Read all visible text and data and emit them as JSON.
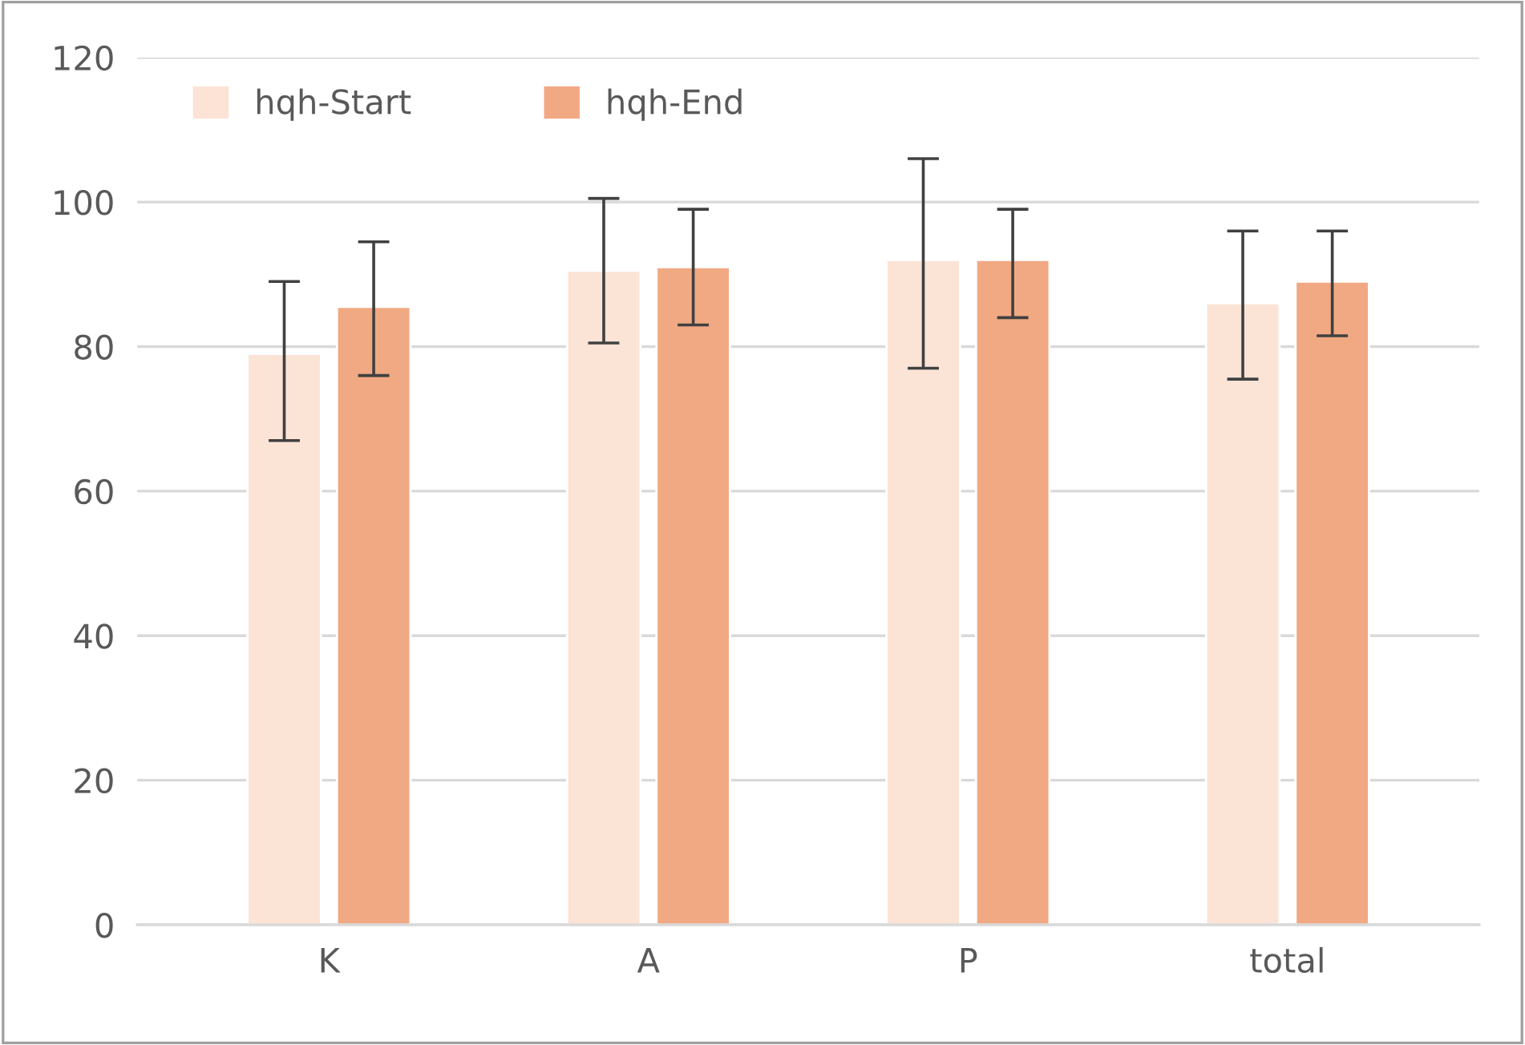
{
  "chart_data": {
    "type": "bar",
    "categories": [
      "K",
      "A",
      "P",
      "total"
    ],
    "series": [
      {
        "name": "hqh-Start",
        "color": "#fbe3d6",
        "values": [
          79,
          90.5,
          92,
          86
        ],
        "errors": [
          [
            67,
            89
          ],
          [
            80.5,
            100.5
          ],
          [
            77,
            106
          ],
          [
            75.5,
            96
          ]
        ]
      },
      {
        "name": "hqh-End",
        "color": "#f1a983",
        "values": [
          85.5,
          91,
          92,
          89
        ],
        "errors": [
          [
            76,
            94.5
          ],
          [
            83,
            99
          ],
          [
            84,
            99
          ],
          [
            81.5,
            96
          ]
        ]
      }
    ],
    "ylim": [
      0,
      120
    ],
    "yticks": [
      0,
      20,
      40,
      60,
      80,
      100,
      120
    ],
    "grid": "y",
    "legend": "top left"
  }
}
